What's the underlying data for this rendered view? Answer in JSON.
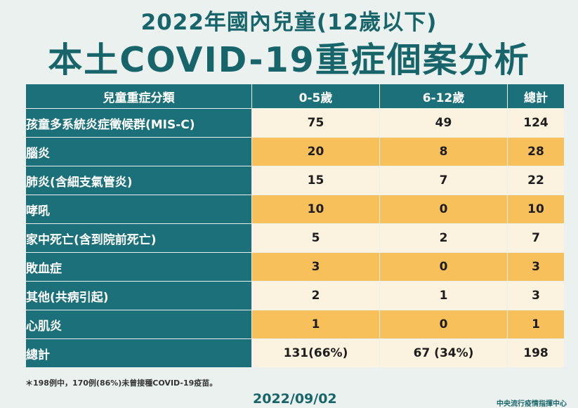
{
  "header": {
    "title_line1": "2022年國內兒童(12歲以下)",
    "title_line2": "本土COVID-19重症個案分析"
  },
  "table": {
    "headers": [
      "兒童重症分類",
      "0-5歲",
      "6-12歲",
      "總計"
    ],
    "rows": [
      {
        "category": "孩童多系統炎症徵候群(MIS-C)",
        "age_0_5": "75",
        "age_6_12": "49",
        "total": "124"
      },
      {
        "category": "腦炎",
        "age_0_5": "20",
        "age_6_12": "8",
        "total": "28"
      },
      {
        "category": "肺炎(含細支氣管炎)",
        "age_0_5": "15",
        "age_6_12": "7",
        "total": "22"
      },
      {
        "category": "哮吼",
        "age_0_5": "10",
        "age_6_12": "0",
        "total": "10"
      },
      {
        "category": "家中死亡(含到院前死亡)",
        "age_0_5": "5",
        "age_6_12": "2",
        "total": "7"
      },
      {
        "category": "敗血症",
        "age_0_5": "3",
        "age_6_12": "0",
        "total": "3"
      },
      {
        "category": "其他(共病引起)",
        "age_0_5": "2",
        "age_6_12": "1",
        "total": "3"
      },
      {
        "category": "心肌炎",
        "age_0_5": "1",
        "age_6_12": "0",
        "total": "1"
      },
      {
        "category": "總計",
        "age_0_5": "131(66%)",
        "age_6_12": "67 (34%)",
        "total": "198"
      }
    ]
  },
  "footnote": "＊198例中，170例(86%)未曾接種COVID-19疫苗。",
  "date": "2022/09/02",
  "agency": "中央流行疫情指揮中心",
  "colors": {
    "title": "#17656a",
    "header_bg": "#1c7079",
    "row_light": "#fbf2df",
    "row_dark": "#f8c05a",
    "background": "#eaf1ee"
  }
}
